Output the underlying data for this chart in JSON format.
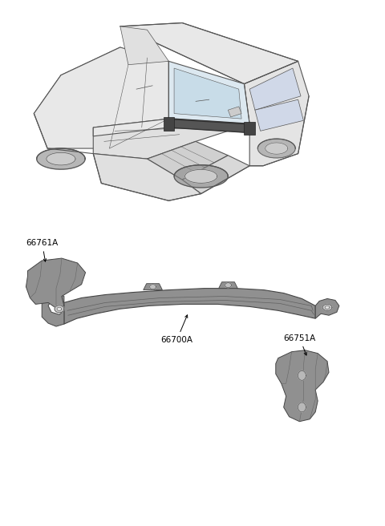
{
  "background_color": "#ffffff",
  "fig_width": 4.8,
  "fig_height": 6.56,
  "dpi": 100,
  "label_color": "#000000",
  "label_fontsize": 7.5,
  "part_edge_color": "#444444",
  "part_face_color": "#b0b0b0",
  "part_face_light": "#d0d0d0",
  "car_color": "#555555",
  "car_lw": 0.8,
  "parts_label": [
    "66761A",
    "66700A",
    "66751A"
  ]
}
